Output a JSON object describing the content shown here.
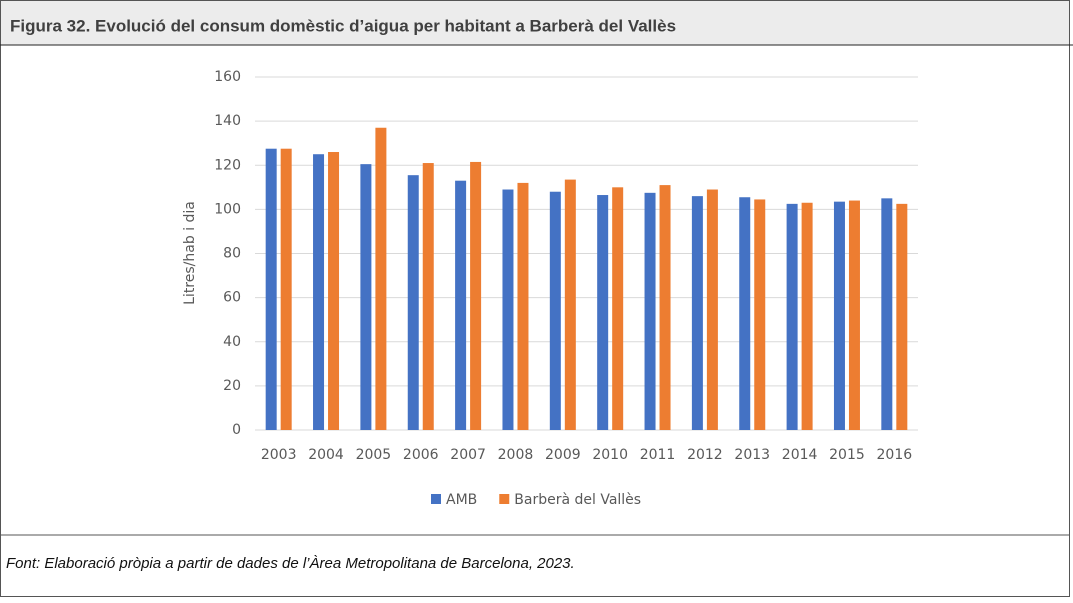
{
  "chart_data": {
    "type": "bar",
    "title": "Figura 32. Evolució del consum domèstic d’aigua per habitant a Barberà del Vallès",
    "source": "Font: Elaboració pròpia a partir de dades de l’Àrea Metropolitana de Barcelona, 2023.",
    "y_label": "Litres/hab i dia",
    "categories": [
      "2003",
      "2004",
      "2005",
      "2006",
      "2007",
      "2008",
      "2009",
      "2010",
      "2011",
      "2012",
      "2013",
      "2014",
      "2015",
      "2016"
    ],
    "series": [
      {
        "name": "AMB",
        "color": "#4472c4",
        "values": [
          127.5,
          125,
          120.5,
          115.5,
          113,
          109,
          108,
          106.5,
          107.5,
          106,
          105.5,
          102.5,
          103.5,
          105
        ]
      },
      {
        "name": "Barberà del Vallès",
        "color": "#ed7d31",
        "values": [
          127.5,
          126,
          137,
          121,
          121.5,
          112,
          113.5,
          110,
          111,
          109,
          104.5,
          103,
          104,
          102.5
        ]
      }
    ],
    "ylim": [
      0,
      160
    ],
    "yticks": [
      0,
      20,
      40,
      60,
      80,
      100,
      120,
      140,
      160
    ],
    "grid": true,
    "legend": "bottom"
  }
}
